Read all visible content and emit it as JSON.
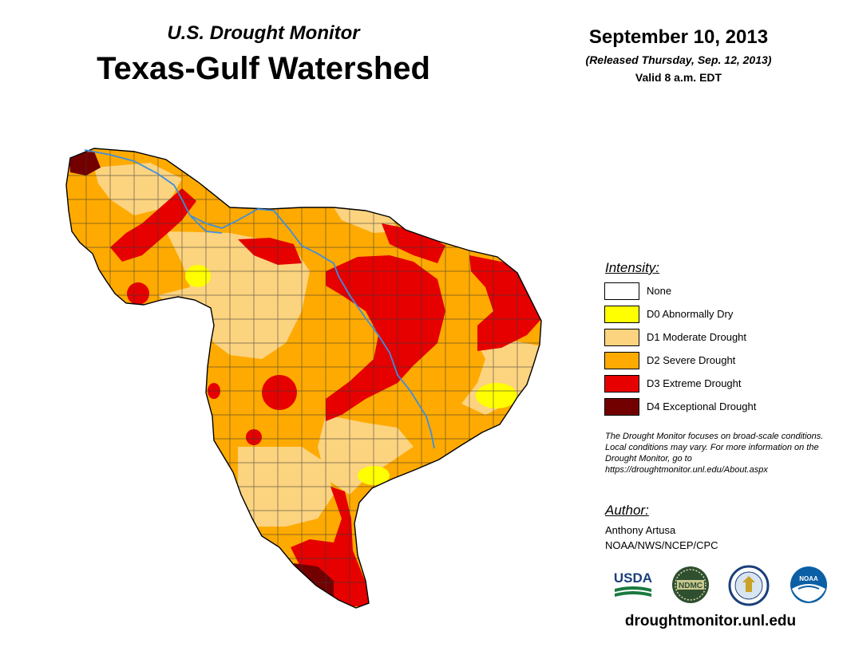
{
  "header": {
    "subtitle": "U.S. Drought Monitor",
    "title": "Texas-Gulf Watershed",
    "date": "September 10, 2013",
    "released": "(Released Thursday, Sep. 12, 2013)",
    "valid": "Valid 8 a.m. EDT"
  },
  "legend": {
    "title": "Intensity:",
    "items": [
      {
        "label": "None",
        "color": "#ffffff"
      },
      {
        "label": "D0 Abnormally Dry",
        "color": "#ffff00"
      },
      {
        "label": "D1 Moderate Drought",
        "color": "#fcd37f"
      },
      {
        "label": "D2 Severe Drought",
        "color": "#ffaa00"
      },
      {
        "label": "D3 Extreme Drought",
        "color": "#e60000"
      },
      {
        "label": "D4 Exceptional Drought",
        "color": "#730000"
      }
    ]
  },
  "note": "The Drought Monitor focuses on broad-scale conditions. Local conditions may vary. For more information on the Drought Monitor, go to https://droughtmonitor.unl.edu/About.aspx",
  "author": {
    "title": "Author:",
    "name": "Anthony Artusa",
    "org": "NOAA/NWS/NCEP/CPC"
  },
  "logos": {
    "usda": "USDA",
    "ndmc": "NDMC",
    "noaa": "NOAA"
  },
  "website": "droughtmonitor.unl.edu",
  "colors": {
    "river": "#3d8ee0",
    "county_line": "#3a3a3a"
  }
}
